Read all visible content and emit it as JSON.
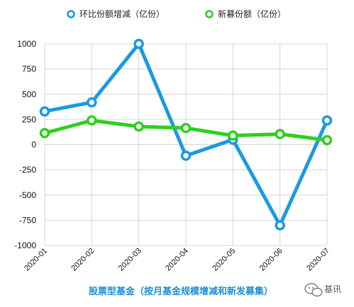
{
  "chart_data": {
    "type": "line",
    "title": "",
    "caption": "股票型基金（按月基金规模增减和新发募集）",
    "xlabel": "",
    "ylabel": "",
    "ylim": [
      -1000,
      1000
    ],
    "yticks": [
      1000,
      750,
      500,
      250,
      0,
      -250,
      -500,
      -750,
      -1000
    ],
    "x": [
      "2020-01",
      "2020-02",
      "2020-03",
      "2020-04",
      "2020-05",
      "2020-06",
      "2020-07"
    ],
    "series": [
      {
        "name": "环比份额增减（亿份）",
        "color": "#1a9ae0",
        "values": [
          330,
          420,
          1000,
          -110,
          50,
          -800,
          240
        ]
      },
      {
        "name": "新募份额（亿份）",
        "color": "#2ecf1e",
        "values": [
          115,
          240,
          180,
          165,
          90,
          105,
          45
        ]
      }
    ],
    "legend": "top",
    "grid": true
  },
  "watermark": "基讯"
}
